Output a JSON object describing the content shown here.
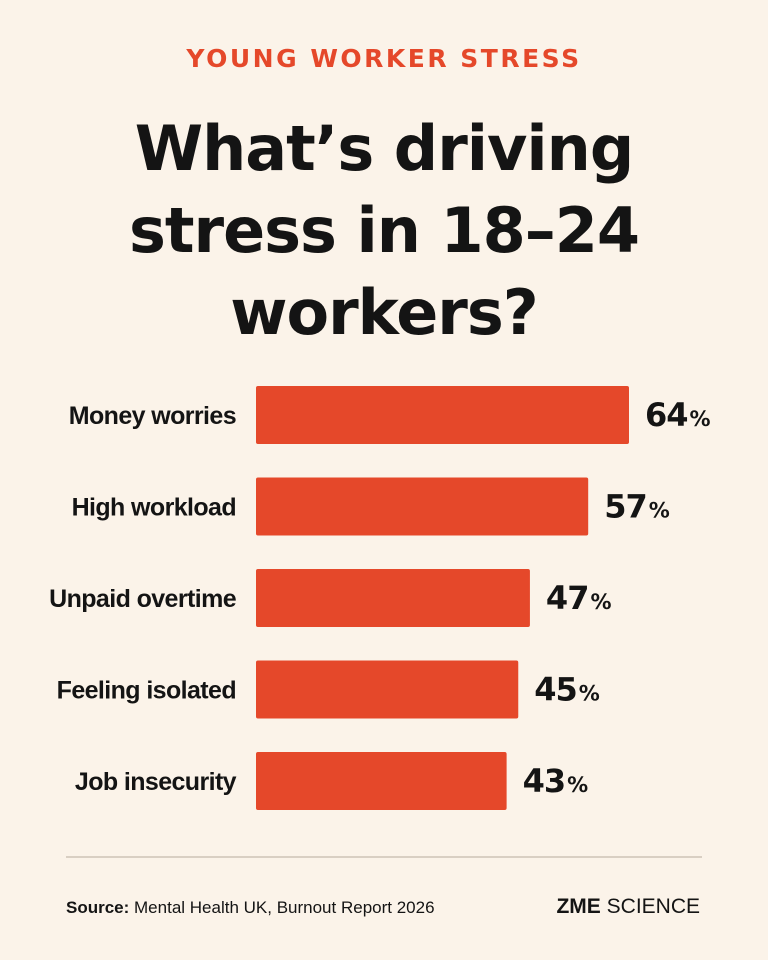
{
  "kicker": "YOUNG WORKER STRESS",
  "headline": {
    "line1": "What’s driving",
    "line2": "stress in 18–24",
    "line3": "workers?"
  },
  "chart_data": {
    "type": "bar",
    "orientation": "horizontal",
    "categories": [
      "Money worries",
      "High workload",
      "Unpaid overtime",
      "Feeling isolated",
      "Job insecurity"
    ],
    "values": [
      64,
      57,
      47,
      45,
      43
    ],
    "value_suffix": "%",
    "bar_color": "#e5482a",
    "grid": false,
    "legend": "none"
  },
  "source": {
    "label": "Source:",
    "text": " Mental Health UK, Burnout Report 2026"
  },
  "brand": {
    "part1": "ZME",
    "part2": " SCIENCE"
  },
  "colors": {
    "background": "#fbf3e9",
    "accent": "#e5482a",
    "text": "#141414",
    "divider": "#d9cfc3"
  }
}
